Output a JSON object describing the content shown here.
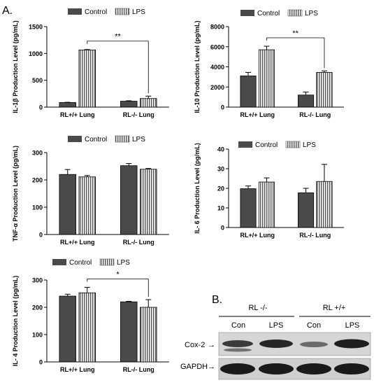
{
  "figure": {
    "panel_a_label": "A.",
    "panel_b_label": "B."
  },
  "colors": {
    "control": "#4a4a4a",
    "lps_stripe": "#555555",
    "axis": "#000000"
  },
  "chart_data": [
    {
      "type": "bar",
      "id": "il1b",
      "categories": [
        "RL+/+ Lung",
        "RL-/- Lung"
      ],
      "series": [
        {
          "name": "Control",
          "values": [
            85,
            110
          ],
          "errors": [
            5,
            8
          ]
        },
        {
          "name": "LPS",
          "values": [
            1065,
            160
          ],
          "errors": [
            8,
            45
          ]
        }
      ],
      "ylabel": "IL-1β Production Level (pg/mL)",
      "ylim": [
        0,
        1500
      ],
      "yticks": [
        "0",
        "500",
        "1000",
        "1500"
      ],
      "legend": [
        "Control",
        "LPS"
      ],
      "significance": "**"
    },
    {
      "type": "bar",
      "id": "il10",
      "categories": [
        "RL+/+ Lung",
        "RL-/- Lung"
      ],
      "series": [
        {
          "name": "Control",
          "values": [
            3100,
            1200
          ],
          "errors": [
            350,
            300
          ]
        },
        {
          "name": "LPS",
          "values": [
            5700,
            3450
          ],
          "errors": [
            350,
            150
          ]
        }
      ],
      "ylabel": "IL-10 Production Level (pg/mL)",
      "ylim": [
        0,
        8000
      ],
      "yticks": [
        "0",
        "2000",
        "4000",
        "6000",
        "8000"
      ],
      "legend": [
        "Control",
        "LPS"
      ],
      "significance": "**"
    },
    {
      "type": "bar",
      "id": "tnfa",
      "categories": [
        "RL+/+ Lung",
        "RL-/- Lung"
      ],
      "series": [
        {
          "name": "Control",
          "values": [
            220,
            252
          ],
          "errors": [
            18,
            8
          ]
        },
        {
          "name": "LPS",
          "values": [
            211,
            239
          ],
          "errors": [
            5,
            3
          ]
        }
      ],
      "ylabel": "TNF-α Production Level (pg/mL)",
      "ylim": [
        0,
        300
      ],
      "yticks": [
        "0",
        "100",
        "200",
        "300"
      ],
      "legend": [
        "Control",
        "LPS"
      ],
      "significance": ""
    },
    {
      "type": "bar",
      "id": "il6",
      "categories": [
        "RL+/+ Lung",
        "RL-/- Lung"
      ],
      "series": [
        {
          "name": "Control",
          "values": [
            19.8,
            17.7
          ],
          "errors": [
            1.4,
            2.3
          ]
        },
        {
          "name": "LPS",
          "values": [
            23.2,
            23.5
          ],
          "errors": [
            2.1,
            8.7
          ]
        }
      ],
      "ylabel": "IL- 6 Production Level (pg/mL)",
      "ylim": [
        0,
        40
      ],
      "yticks": [
        "0",
        "10",
        "20",
        "30",
        "40"
      ],
      "legend": [
        "Control",
        "LPS"
      ],
      "significance": ""
    },
    {
      "type": "bar",
      "id": "il4",
      "categories": [
        "RL+/+ Lung",
        "RL-/- Lung"
      ],
      "series": [
        {
          "name": "Control",
          "values": [
            241,
            220
          ],
          "errors": [
            7,
            2
          ]
        },
        {
          "name": "LPS",
          "values": [
            253,
            200
          ],
          "errors": [
            20,
            28
          ]
        }
      ],
      "ylabel": "IL- 4 Production Level (pg/mL)",
      "ylim": [
        0,
        300
      ],
      "yticks": [
        "0",
        "100",
        "200",
        "300"
      ],
      "legend": [
        "Control",
        "LPS"
      ],
      "significance": "*"
    }
  ],
  "blot": {
    "group_left": "RL -/-",
    "group_right": "RL +/+",
    "lanes": [
      "Con",
      "LPS",
      "Con",
      "LPS"
    ],
    "row_cox2": "Cox-2",
    "row_gapdh": "GAPDH"
  }
}
